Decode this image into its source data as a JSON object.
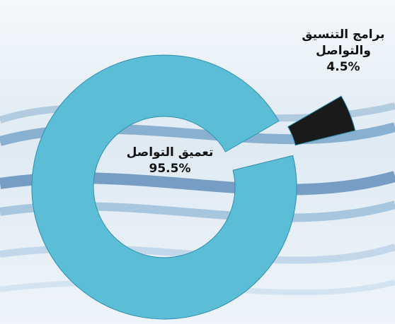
{
  "chart_data": {
    "type": "pie",
    "categories": [
      "برامج التنسيق والتواصل",
      "تعميق التواصل"
    ],
    "values": [
      4.5,
      95.5
    ],
    "value_labels": [
      "4.5%",
      "95.5%"
    ],
    "colors": [
      "#1a1a1a",
      "#5cbdd6"
    ],
    "donut": true,
    "exploded": [
      true,
      false
    ]
  }
}
